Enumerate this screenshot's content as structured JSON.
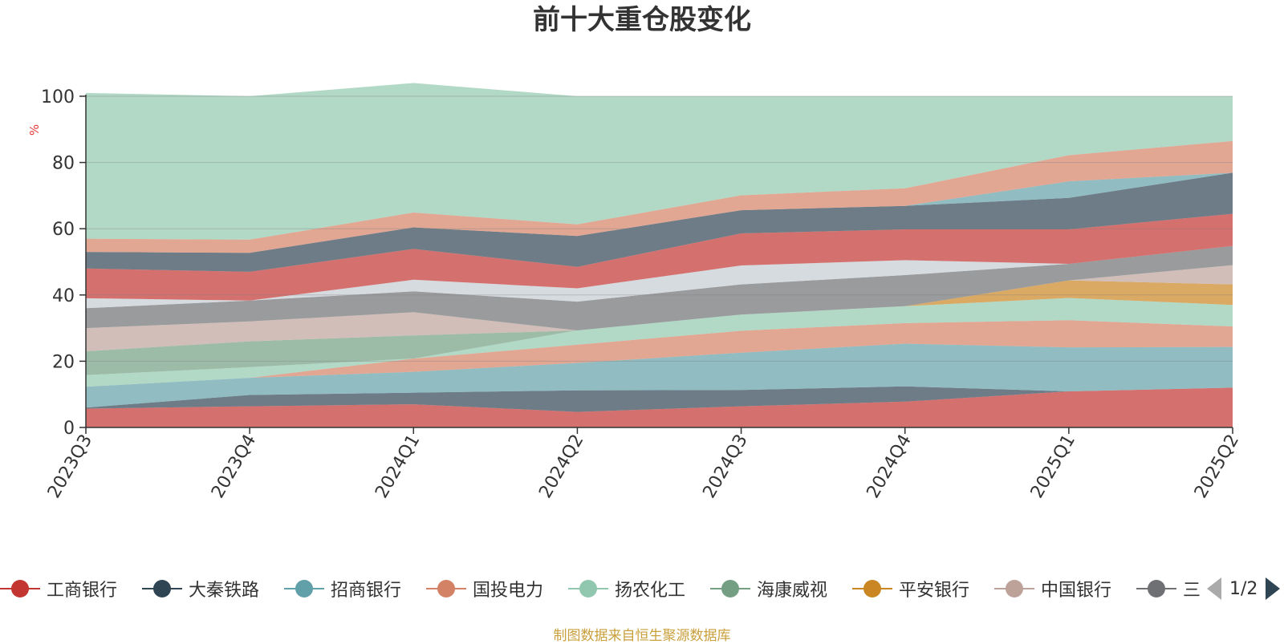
{
  "source_note": "制图数据来自恒生聚源数据库",
  "legend_pager": {
    "text": "1/2"
  },
  "chart_data": {
    "type": "area",
    "stacked": true,
    "title": "前十大重仓股变化",
    "ylabel": "%",
    "ylim": [
      0,
      100
    ],
    "yticks": [
      0,
      20,
      40,
      60,
      80,
      100
    ],
    "grid": true,
    "legend_position": "bottom",
    "categories": [
      "2023Q3",
      "2023Q4",
      "2024Q1",
      "2024Q2",
      "2024Q3",
      "2024Q4",
      "2025Q1",
      "2025Q2"
    ],
    "series": [
      {
        "name": "工商银行",
        "color": "#c23531",
        "values": [
          5.7,
          6.4,
          7.0,
          4.7,
          6.4,
          7.8,
          10.9,
          12.0
        ],
        "legend": true
      },
      {
        "name": "大秦铁路",
        "color": "#2f4554",
        "values": [
          0.3,
          3.4,
          3.5,
          6.5,
          4.9,
          4.6,
          0.0,
          0.0
        ],
        "legend": true
      },
      {
        "name": "招商银行",
        "color": "#61a0a8",
        "values": [
          6.3,
          5.2,
          6.3,
          8.3,
          11.3,
          12.9,
          13.3,
          12.3
        ],
        "legend": true
      },
      {
        "name": "国投电力",
        "color": "#d48265",
        "values": [
          0.0,
          0.0,
          4.0,
          5.5,
          6.6,
          6.2,
          8.2,
          6.2
        ],
        "legend": true
      },
      {
        "name": "扬农化工",
        "color": "#91c7ae",
        "values": [
          3.5,
          3.2,
          0.0,
          4.3,
          4.9,
          5.1,
          6.7,
          6.5
        ],
        "legend": true
      },
      {
        "name": "海康威视",
        "color": "#749f83",
        "values": [
          7.2,
          7.8,
          7.0,
          0.0,
          0.0,
          0.0,
          0.0,
          0.0
        ],
        "legend": true
      },
      {
        "name": "平安银行",
        "color": "#ca8622",
        "values": [
          0.0,
          0.0,
          0.0,
          0.0,
          0.0,
          0.0,
          5.3,
          6.2
        ],
        "legend": true
      },
      {
        "name": "中国银行",
        "color": "#bda29a",
        "values": [
          7.0,
          6.0,
          7.0,
          0.0,
          0.0,
          0.0,
          0.0,
          5.8
        ],
        "legend": true
      },
      {
        "name": "三",
        "color": "#6e7074",
        "values": [
          6.0,
          6.3,
          6.3,
          8.7,
          9.1,
          9.4,
          5.0,
          5.8
        ],
        "legend": true
      },
      {
        "name": "",
        "color": "#c4ccd3",
        "values": [
          3.0,
          0.0,
          3.5,
          4.0,
          5.7,
          4.5,
          0.0,
          0.0
        ],
        "legend": false
      },
      {
        "name": "",
        "color": "#c23531",
        "values": [
          9.0,
          8.7,
          9.3,
          6.5,
          9.7,
          9.3,
          10.4,
          9.7
        ],
        "legend": false
      },
      {
        "name": "",
        "color": "#2f4554",
        "values": [
          5.0,
          5.7,
          6.5,
          9.3,
          7.0,
          7.1,
          9.5,
          12.4
        ],
        "legend": false
      },
      {
        "name": "",
        "color": "#61a0a8",
        "values": [
          0.0,
          0.0,
          0.0,
          0.0,
          0.0,
          0.0,
          5.0,
          0.0
        ],
        "legend": false
      },
      {
        "name": "",
        "color": "#d48265",
        "values": [
          4.0,
          4.0,
          4.5,
          3.5,
          4.5,
          5.3,
          7.9,
          9.6
        ],
        "legend": false
      },
      {
        "name": "",
        "color": "#91c7ae",
        "values": [
          44.0,
          43.3,
          39.1,
          38.7,
          29.9,
          27.8,
          17.8,
          13.5
        ],
        "legend": false
      }
    ]
  }
}
